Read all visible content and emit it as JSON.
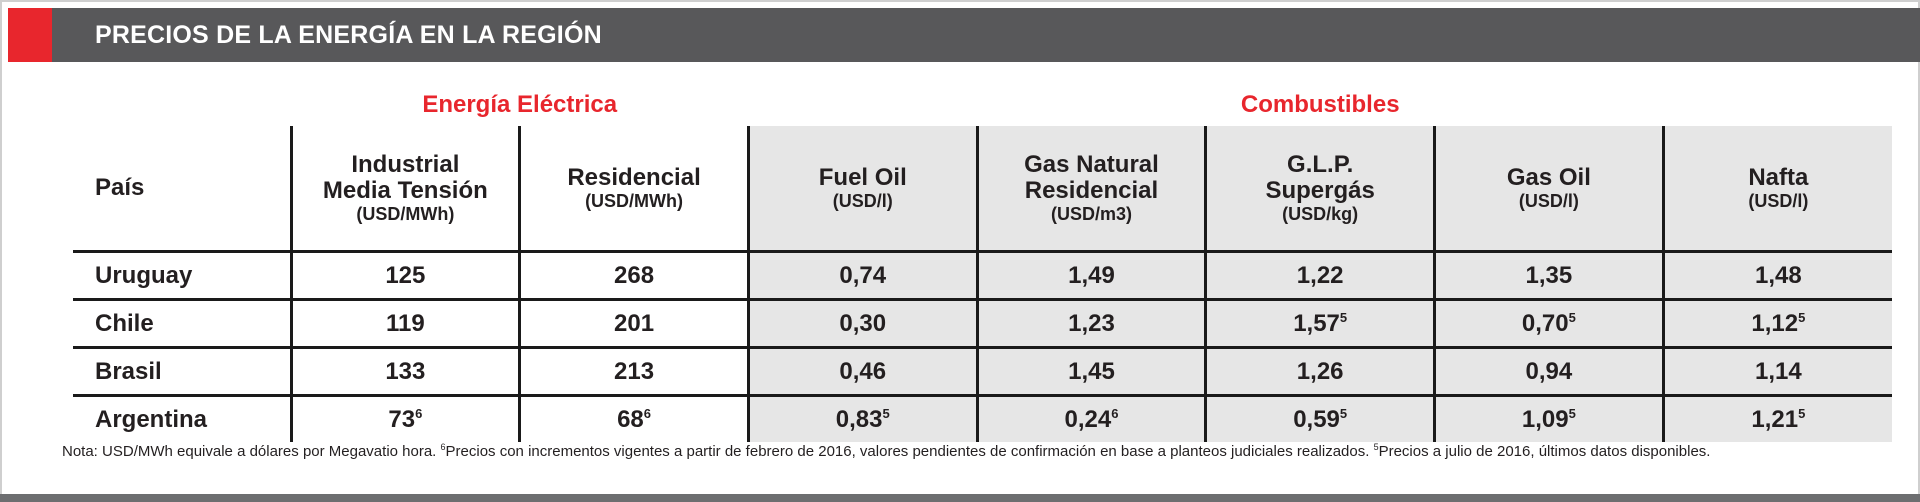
{
  "header": {
    "title": "PRECIOS DE LA ENERGÍA EN LA REGIÓN"
  },
  "table": {
    "groups": [
      "Energía Eléctrica",
      "Combustibles"
    ],
    "columns": [
      {
        "name": [
          "País"
        ]
      },
      {
        "name": [
          "Industrial",
          "Media Tensión"
        ],
        "unit": "(USD/MWh)"
      },
      {
        "name": [
          "Residencial"
        ],
        "unit": "(USD/MWh)"
      },
      {
        "name": [
          "Fuel Oil"
        ],
        "unit": "(USD/l)"
      },
      {
        "name": [
          "Gas Natural",
          "Residencial"
        ],
        "unit": "(USD/m3)"
      },
      {
        "name": [
          "G.L.P.",
          "Supergás"
        ],
        "unit": "(USD/kg)"
      },
      {
        "name": [
          "Gas Oil"
        ],
        "unit": "(USD/l)"
      },
      {
        "name": [
          "Nafta"
        ],
        "unit": "(USD/l)"
      }
    ],
    "rows": [
      [
        {
          "text": "Uruguay"
        },
        {
          "text": "125"
        },
        {
          "text": "268"
        },
        {
          "text": "0,74"
        },
        {
          "text": "1,49"
        },
        {
          "text": "1,22"
        },
        {
          "text": "1,35"
        },
        {
          "text": "1,48"
        }
      ],
      [
        {
          "text": "Chile"
        },
        {
          "text": "119"
        },
        {
          "text": "201"
        },
        {
          "text": "0,30"
        },
        {
          "text": "1,23"
        },
        {
          "text": "1,57",
          "sup": "5"
        },
        {
          "text": "0,70",
          "sup": "5"
        },
        {
          "text": "1,12",
          "sup": "5"
        }
      ],
      [
        {
          "text": "Brasil"
        },
        {
          "text": "133"
        },
        {
          "text": "213"
        },
        {
          "text": "0,46"
        },
        {
          "text": "1,45"
        },
        {
          "text": "1,26"
        },
        {
          "text": "0,94"
        },
        {
          "text": "1,14"
        }
      ],
      [
        {
          "text": "Argentina"
        },
        {
          "text": "73",
          "sup": "6"
        },
        {
          "text": "68",
          "sup": "6"
        },
        {
          "text": "0,83",
          "sup": "5"
        },
        {
          "text": "0,24",
          "sup": "6"
        },
        {
          "text": "0,59",
          "sup": "5"
        },
        {
          "text": "1,09",
          "sup": "5"
        },
        {
          "text": "1,21",
          "sup": "5"
        }
      ]
    ]
  },
  "note": [
    {
      "text": "Nota: USD/MWh equivale a dólares por Megavatio hora. "
    },
    {
      "sup": "6"
    },
    {
      "text": "Precios con incrementos vigentes a partir de febrero de 2016, valores pendientes de confirmación en base a planteos judiciales realizados. "
    },
    {
      "sup": "5"
    },
    {
      "text": "Precios a julio de 2016, últimos datos disponibles."
    }
  ]
}
